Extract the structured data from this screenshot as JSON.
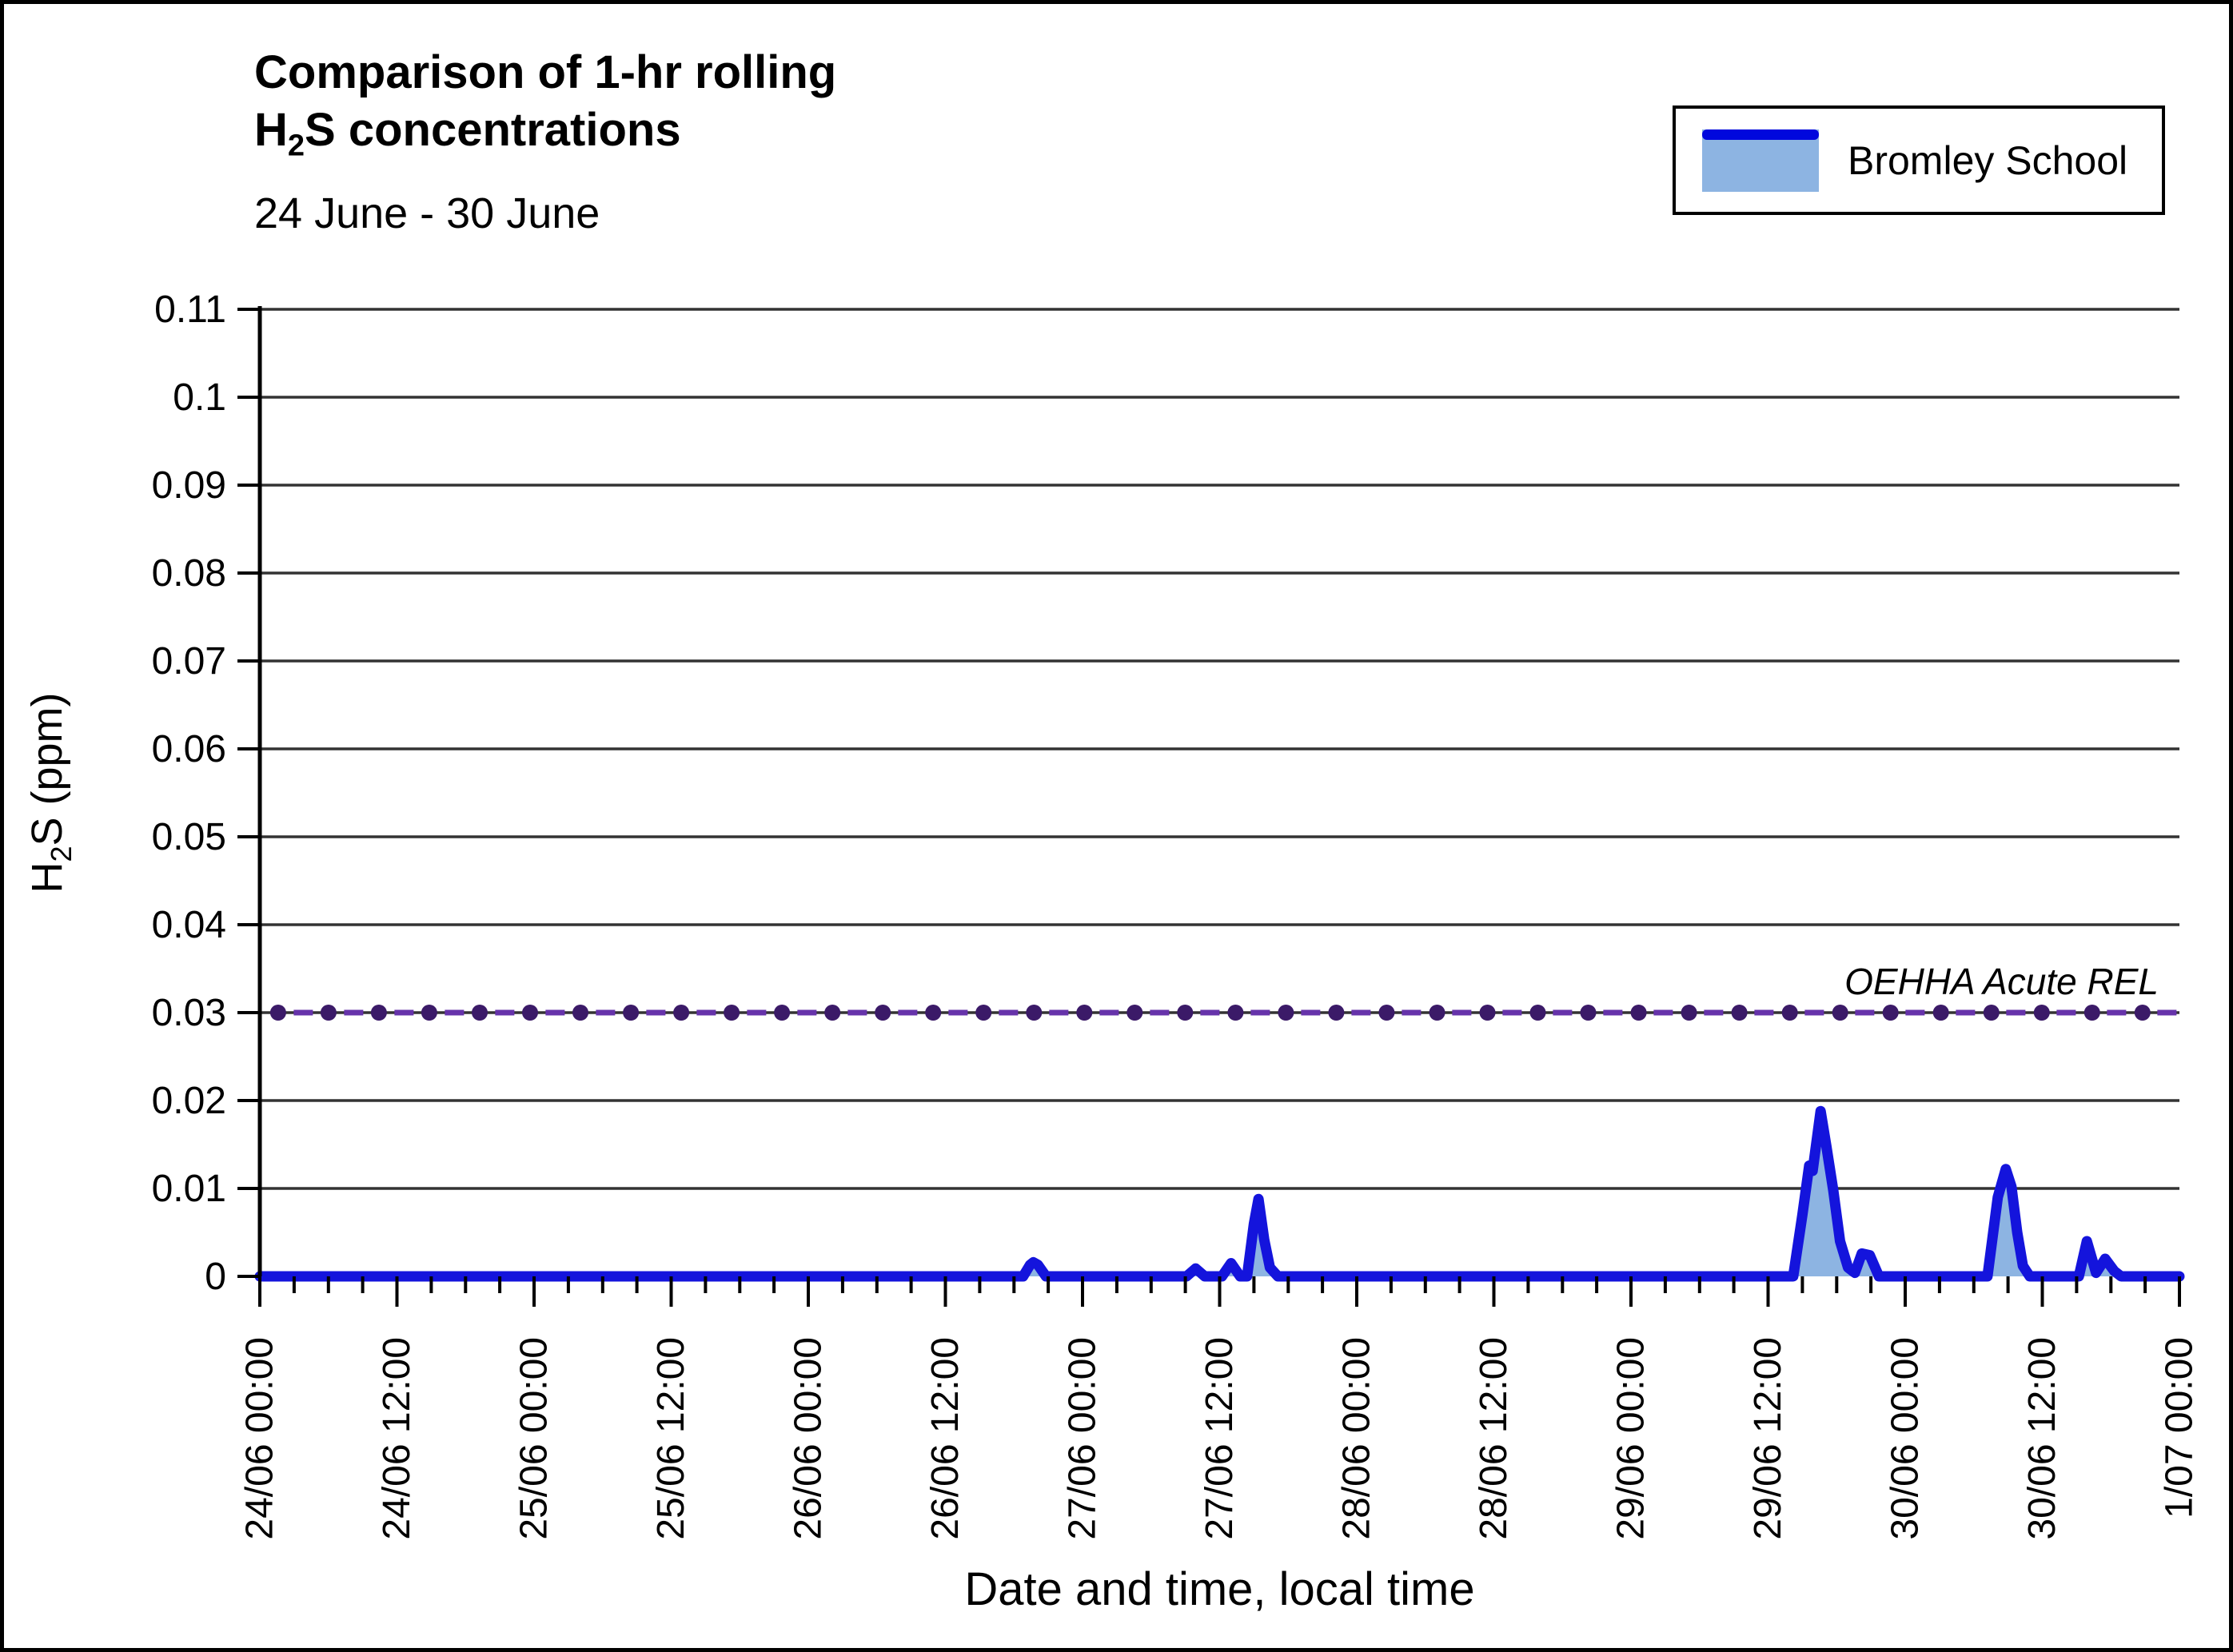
{
  "header": {
    "title_line1": "Comparison of 1-hr rolling",
    "title_line2": {
      "base": "H",
      "sub": "2",
      "rest": "S concentrations"
    },
    "subtitle": "24 June - 30 June"
  },
  "legend": {
    "items": [
      {
        "label": "Bromley School",
        "swatch_fill": "#8db4e2",
        "swatch_line": "#0008dd"
      }
    ]
  },
  "axes": {
    "y_title": {
      "base": "H",
      "sub": "2",
      "rest": "S (ppm)"
    },
    "x_title": "Date and time, local time"
  },
  "annotations": {
    "rel_label": "OEHHA Acute REL"
  },
  "colors": {
    "series_line": "#1414dc",
    "series_fill": "#8db4e2",
    "rel_marker": "#3b1a68",
    "rel_dash": "#6633aa",
    "gridline": "#333333",
    "axis": "#000000"
  },
  "chart_data": {
    "type": "area",
    "title": "Comparison of 1-hr rolling H2S concentrations",
    "subtitle": "24 June - 30 June",
    "xlabel": "Date and time, local time",
    "ylabel": "H2S (ppm)",
    "ylim": [
      0,
      0.11
    ],
    "y_tick_step": 0.01,
    "y_ticks": [
      "0",
      "0.01",
      "0.02",
      "0.03",
      "0.04",
      "0.05",
      "0.06",
      "0.07",
      "0.08",
      "0.09",
      "0.1",
      "0.11"
    ],
    "x_ticks": [
      "24/06 00:00",
      "24/06 12:00",
      "25/06 00:00",
      "25/06 12:00",
      "26/06 00:00",
      "26/06 12:00",
      "27/06 00:00",
      "27/06 12:00",
      "28/06 00:00",
      "28/06 12:00",
      "29/06 00:00",
      "29/06 12:00",
      "30/06 00:00",
      "30/06 12:00",
      "1/07 00:00"
    ],
    "x_major_tick_hours": 12,
    "x_minor_tick_hours": 3,
    "x_span_hours": 168,
    "grid": "horizontal",
    "legend_position": "top-right",
    "series": [
      {
        "name": "Bromley School",
        "type": "area",
        "units": "ppm",
        "points_hours_ppm": [
          [
            0,
            0
          ],
          [
            66.8,
            0
          ],
          [
            67.4,
            0.0013
          ],
          [
            67.7,
            0.0016
          ],
          [
            68.1,
            0.0013
          ],
          [
            68.8,
            0
          ],
          [
            81.1,
            0
          ],
          [
            81.9,
            0.0009
          ],
          [
            82.7,
            0
          ],
          [
            84.2,
            0
          ],
          [
            85.0,
            0.0015
          ],
          [
            85.8,
            0
          ],
          [
            86.4,
            0
          ],
          [
            87.0,
            0.006
          ],
          [
            87.4,
            0.0088
          ],
          [
            87.9,
            0.0042
          ],
          [
            88.4,
            0.001
          ],
          [
            89.1,
            0
          ],
          [
            134.2,
            0
          ],
          [
            135.0,
            0.007
          ],
          [
            135.6,
            0.0126
          ],
          [
            135.9,
            0.012
          ],
          [
            136.6,
            0.0188
          ],
          [
            137.1,
            0.0148
          ],
          [
            137.7,
            0.0098
          ],
          [
            138.3,
            0.004
          ],
          [
            139.0,
            0.001
          ],
          [
            139.6,
            0.0004
          ],
          [
            140.2,
            0.0026
          ],
          [
            140.9,
            0.0024
          ],
          [
            141.7,
            0
          ],
          [
            151.2,
            0
          ],
          [
            152.1,
            0.009
          ],
          [
            152.8,
            0.0122
          ],
          [
            153.3,
            0.0102
          ],
          [
            153.8,
            0.005
          ],
          [
            154.3,
            0.0012
          ],
          [
            154.9,
            0
          ],
          [
            159.2,
            0
          ],
          [
            159.9,
            0.004
          ],
          [
            160.7,
            0.0004
          ],
          [
            161.5,
            0.002
          ],
          [
            162.3,
            0.0006
          ],
          [
            162.9,
            0
          ],
          [
            168,
            0
          ]
        ]
      },
      {
        "name": "OEHHA Acute REL",
        "type": "line-dashed-markers",
        "value_ppm": 0.03,
        "marker_start_hour": 1.6,
        "marker_interval_hours": 4.41
      }
    ]
  }
}
